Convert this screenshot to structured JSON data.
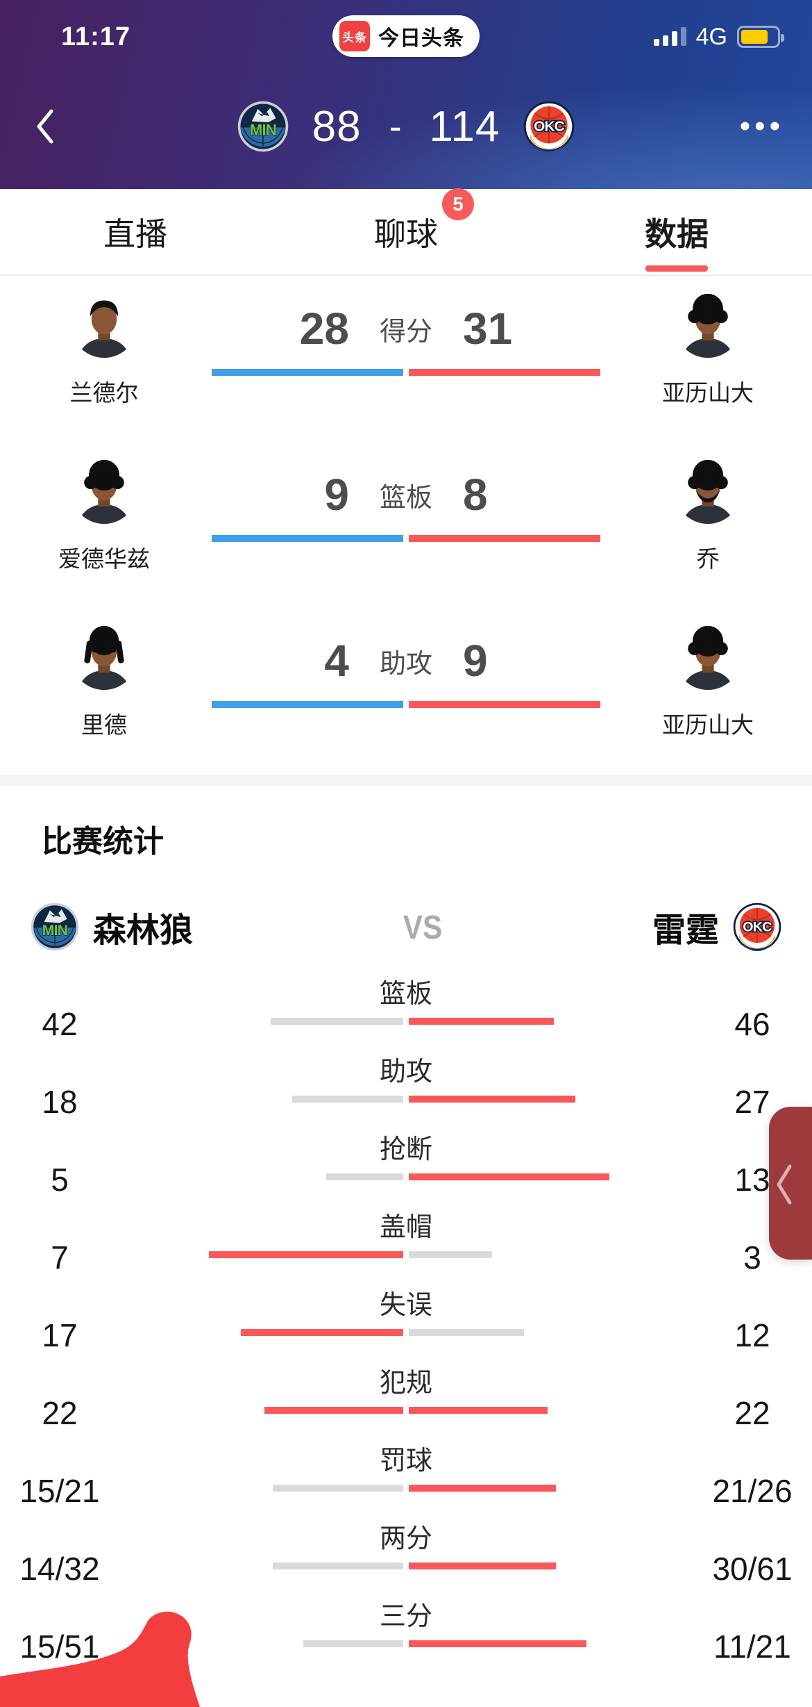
{
  "status_bar": {
    "time": "11:17",
    "app_badge": {
      "logo_text": "头条",
      "label": "今日头条"
    },
    "network": "4G"
  },
  "header": {
    "home_team": "MIN",
    "away_team": "OKC",
    "home_score": "88",
    "score_separator": "-",
    "away_score": "114",
    "more_icon": "•••"
  },
  "tabs": [
    {
      "key": "live",
      "label": "直播",
      "active": false
    },
    {
      "key": "chat",
      "label": "聊球",
      "badge": "5",
      "active": false
    },
    {
      "key": "data",
      "label": "数据",
      "active": true
    }
  ],
  "leaders": [
    {
      "stat": "得分",
      "left": {
        "name": "兰德尔",
        "value": "28",
        "avatar": "short"
      },
      "right": {
        "name": "亚历山大",
        "value": "31",
        "avatar": "afro"
      }
    },
    {
      "stat": "篮板",
      "left": {
        "name": "爱德华兹",
        "value": "9",
        "avatar": "afro"
      },
      "right": {
        "name": "乔",
        "value": "8",
        "avatar": "afro-beard"
      }
    },
    {
      "stat": "助攻",
      "left": {
        "name": "里德",
        "value": "4",
        "avatar": "locs"
      },
      "right": {
        "name": "亚历山大",
        "value": "9",
        "avatar": "afro"
      }
    }
  ],
  "match_stats": {
    "title": "比赛统计",
    "home": {
      "name": "森林狼",
      "logo": "MIN"
    },
    "away": {
      "name": "雷霆",
      "logo": "OKC"
    },
    "vs": "VS",
    "rows": [
      {
        "label": "篮板",
        "left": "42",
        "right": "46",
        "left_w": 191,
        "right_w": 209,
        "left_color": "gray",
        "right_color": "red"
      },
      {
        "label": "助攻",
        "left": "18",
        "right": "27",
        "left_w": 160,
        "right_w": 240,
        "left_color": "gray",
        "right_color": "red"
      },
      {
        "label": "抢断",
        "left": "5",
        "right": "13",
        "left_w": 111,
        "right_w": 289,
        "left_color": "gray",
        "right_color": "red"
      },
      {
        "label": "盖帽",
        "left": "7",
        "right": "3",
        "left_w": 280,
        "right_w": 120,
        "left_color": "red",
        "right_color": "gray"
      },
      {
        "label": "失误",
        "left": "17",
        "right": "12",
        "left_w": 234,
        "right_w": 166,
        "left_color": "red",
        "right_color": "gray"
      },
      {
        "label": "犯规",
        "left": "22",
        "right": "22",
        "left_w": 200,
        "right_w": 200,
        "left_color": "red",
        "right_color": "red"
      },
      {
        "label": "罚球",
        "left": "15/21",
        "right": "21/26",
        "left_w": 188,
        "right_w": 212,
        "left_color": "gray",
        "right_color": "red"
      },
      {
        "label": "两分",
        "left": "14/32",
        "right": "30/61",
        "left_w": 188,
        "right_w": 212,
        "left_color": "gray",
        "right_color": "red"
      },
      {
        "label": "三分",
        "left": "15/51",
        "right": "11/21",
        "left_w": 144,
        "right_w": 256,
        "left_color": "gray",
        "right_color": "red"
      }
    ]
  },
  "chart_data": {
    "type": "bar",
    "title": "比赛统计",
    "categories": [
      "篮板",
      "助攻",
      "抢断",
      "盖帽",
      "失误",
      "犯规",
      "罚球",
      "两分",
      "三分"
    ],
    "series": [
      {
        "name": "森林狼",
        "values": [
          "42",
          "18",
          "5",
          "7",
          "17",
          "22",
          "15/21",
          "14/32",
          "15/51"
        ]
      },
      {
        "name": "雷霆",
        "values": [
          "46",
          "27",
          "13",
          "3",
          "12",
          "22",
          "21/26",
          "30/61",
          "11/21"
        ]
      }
    ],
    "legend_position": "top",
    "grid": false
  },
  "colors": {
    "accent_red": "#f85959",
    "bar_red": "#fa5858",
    "bar_blue": "#3f9fe8",
    "bar_gray": "#dadada",
    "side_tab_red": "#9d3b3c",
    "thumb_red": "#f23e3e",
    "battery_yellow": "#ffcc00"
  }
}
